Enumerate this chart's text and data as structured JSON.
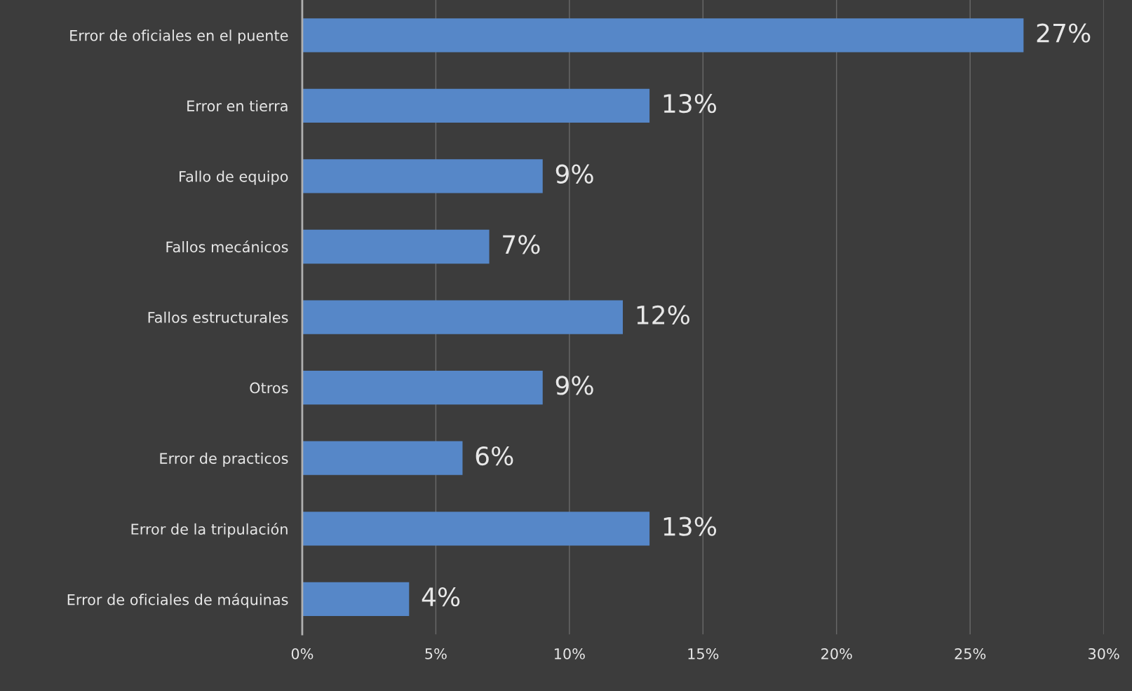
{
  "chart_data": {
    "type": "bar",
    "orientation": "horizontal",
    "categories": [
      "Error de oficiales en el puente",
      "Error en tierra",
      "Fallo de equipo",
      "Fallos mecánicos",
      "Fallos estructurales",
      "Otros",
      "Error de practicos",
      "Error de la tripulación",
      "Error de oficiales de máquinas"
    ],
    "values": [
      27,
      13,
      9,
      7,
      12,
      9,
      6,
      13,
      4
    ],
    "value_labels": [
      "27%",
      "13%",
      "9%",
      "7%",
      "12%",
      "9%",
      "6%",
      "13%",
      "4%"
    ],
    "color": "#5687c8",
    "xlim": [
      0,
      30
    ],
    "xticks": [
      {
        "value": 0,
        "label": "0%"
      },
      {
        "value": 5,
        "label": "5%"
      },
      {
        "value": 10,
        "label": "10%"
      },
      {
        "value": 15,
        "label": "15%"
      },
      {
        "value": 20,
        "label": "20%"
      },
      {
        "value": 25,
        "label": "25%"
      },
      {
        "value": 30,
        "label": "30%"
      }
    ],
    "grid": "x",
    "legend": false
  }
}
